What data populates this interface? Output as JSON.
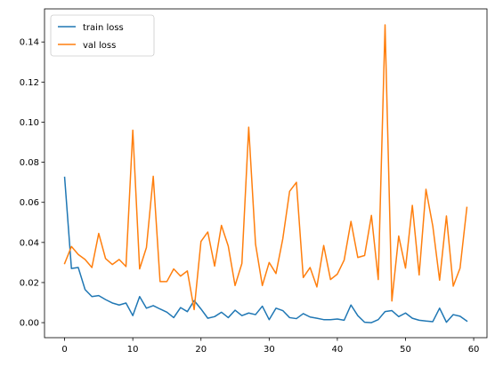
{
  "chart_data": {
    "type": "line",
    "title": "",
    "xlabel": "",
    "ylabel": "",
    "xlim": [
      -2.95,
      61.95
    ],
    "ylim": [
      -0.0075,
      0.1565
    ],
    "x_ticks": [
      0,
      10,
      20,
      30,
      40,
      50,
      60
    ],
    "x_tick_labels": [
      "0",
      "10",
      "20",
      "30",
      "40",
      "50",
      "60"
    ],
    "y_ticks": [
      0,
      0.02,
      0.04,
      0.06,
      0.08,
      0.1,
      0.12,
      0.14
    ],
    "y_tick_labels": [
      "0.00",
      "0.02",
      "0.04",
      "0.06",
      "0.08",
      "0.10",
      "0.12",
      "0.14"
    ],
    "grid": false,
    "legend_position": "top-left",
    "x": [
      0,
      1,
      2,
      3,
      4,
      5,
      6,
      7,
      8,
      9,
      10,
      11,
      12,
      13,
      14,
      15,
      16,
      17,
      18,
      19,
      20,
      21,
      22,
      23,
      24,
      25,
      26,
      27,
      28,
      29,
      30,
      31,
      32,
      33,
      34,
      35,
      36,
      37,
      38,
      39,
      40,
      41,
      42,
      43,
      44,
      45,
      46,
      47,
      48,
      49,
      50,
      51,
      52,
      53,
      54,
      55,
      56,
      57,
      58,
      59
    ],
    "series": [
      {
        "name": "train loss",
        "color": "#1f77b4",
        "values": [
          0.0725,
          0.027,
          0.0275,
          0.0165,
          0.013,
          0.0135,
          0.0115,
          0.0098,
          0.0088,
          0.0098,
          0.0035,
          0.013,
          0.0072,
          0.0085,
          0.0068,
          0.0052,
          0.0025,
          0.0075,
          0.0055,
          0.011,
          0.0068,
          0.0022,
          0.003,
          0.0052,
          0.0025,
          0.0062,
          0.0035,
          0.0048,
          0.004,
          0.0082,
          0.0015,
          0.0072,
          0.006,
          0.0025,
          0.002,
          0.0045,
          0.0028,
          0.0022,
          0.0015,
          0.0015,
          0.0018,
          0.0012,
          0.0088,
          0.0035,
          0.0002,
          0.0,
          0.0015,
          0.0055,
          0.006,
          0.003,
          0.0048,
          0.0022,
          0.0012,
          0.0008,
          0.0005,
          0.0072,
          0.0002,
          0.004,
          0.0032,
          0.0008
        ]
      },
      {
        "name": "val loss",
        "color": "#ff7f0e",
        "values": [
          0.0295,
          0.038,
          0.034,
          0.0315,
          0.0275,
          0.0445,
          0.032,
          0.029,
          0.0315,
          0.028,
          0.096,
          0.0268,
          0.0375,
          0.073,
          0.0205,
          0.0205,
          0.0268,
          0.0232,
          0.0258,
          0.0065,
          0.0405,
          0.0452,
          0.0282,
          0.0485,
          0.0382,
          0.0185,
          0.0295,
          0.0975,
          0.0392,
          0.0185,
          0.03,
          0.0245,
          0.0418,
          0.0655,
          0.07,
          0.0225,
          0.0275,
          0.0178,
          0.0385,
          0.0215,
          0.0242,
          0.0312,
          0.0505,
          0.0325,
          0.0335,
          0.0535,
          0.0215,
          0.1485,
          0.0108,
          0.0432,
          0.0272,
          0.0585,
          0.0238,
          0.0665,
          0.0482,
          0.0212,
          0.0532,
          0.0182,
          0.0272,
          0.0575
        ]
      }
    ]
  }
}
